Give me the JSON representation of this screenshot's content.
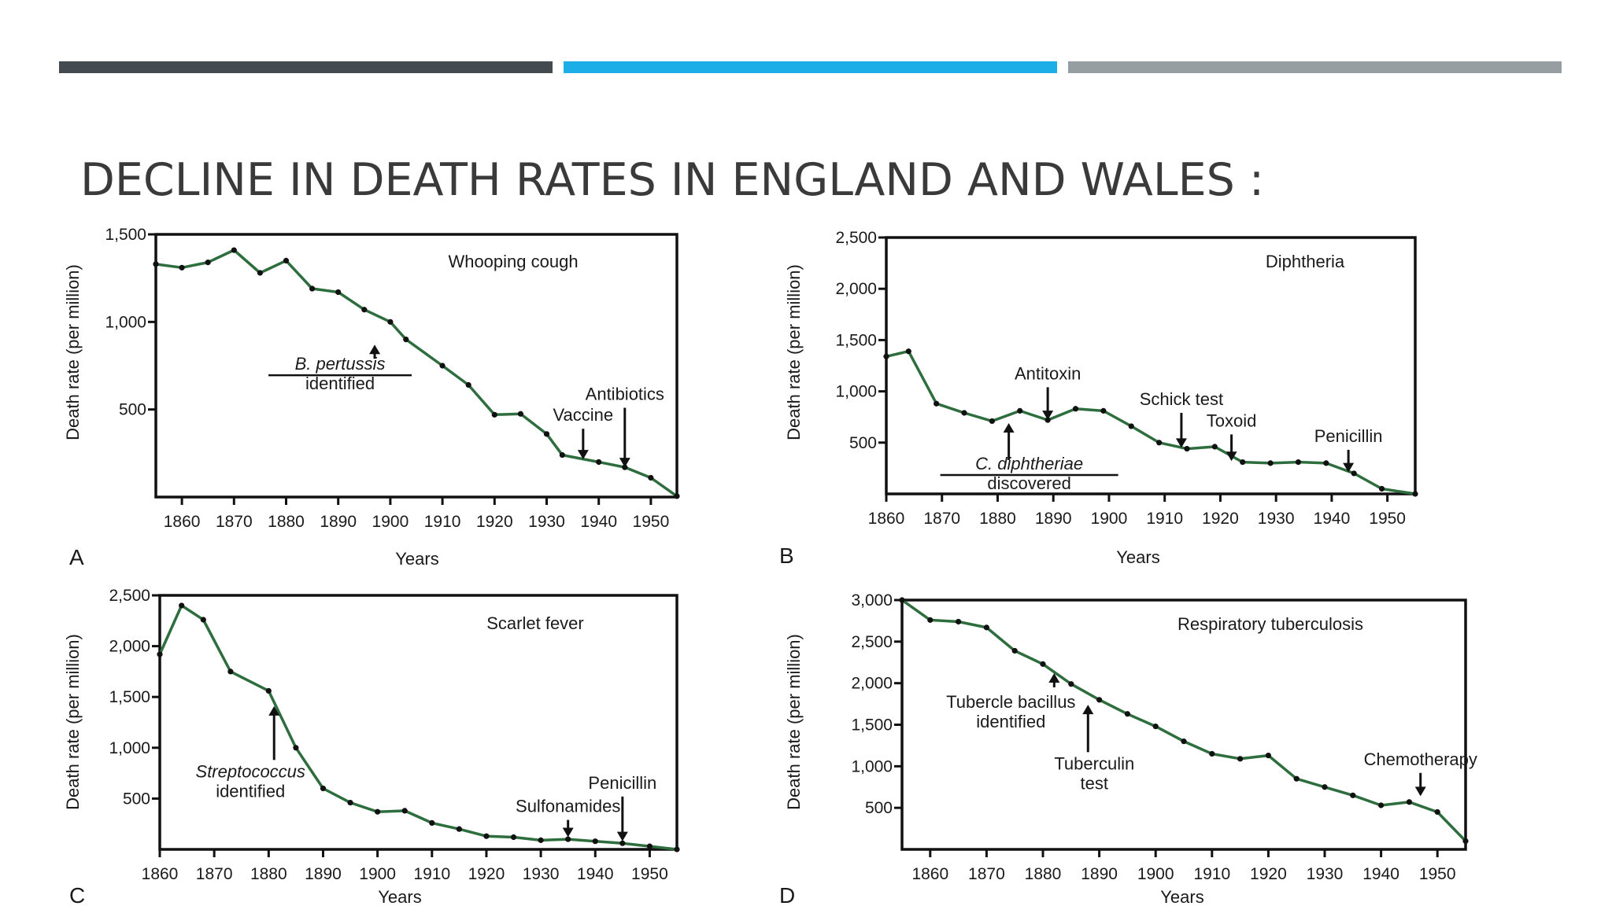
{
  "slide": {
    "title": "DECLINE IN DEATH RATES IN ENGLAND AND WALES :",
    "bar_colors": [
      "#434b50",
      "#1caee6",
      "#979ea2"
    ]
  },
  "style": {
    "line_color": "#2e6e3e",
    "dot_color": "#111111",
    "axis_color": "#111111"
  },
  "chart_data": [
    {
      "type": "line",
      "panel": "A",
      "title": "Whooping cough",
      "xlabel": "Years",
      "ylabel": "Death rate (per million)",
      "xlim": [
        1855,
        1955
      ],
      "ylim": [
        0,
        1500
      ],
      "xticks": [
        1860,
        1870,
        1880,
        1890,
        1900,
        1910,
        1920,
        1930,
        1940,
        1950
      ],
      "yticks": [
        500,
        1000,
        1500
      ],
      "ytick_labels": [
        "500",
        "1,000",
        "1,500"
      ],
      "x": [
        1855,
        1860,
        1865,
        1870,
        1875,
        1880,
        1885,
        1890,
        1895,
        1900,
        1903,
        1910,
        1915,
        1920,
        1925,
        1930,
        1933,
        1940,
        1945,
        1950,
        1955
      ],
      "y": [
        1330,
        1310,
        1340,
        1410,
        1280,
        1350,
        1190,
        1170,
        1070,
        1000,
        900,
        750,
        640,
        470,
        475,
        360,
        240,
        200,
        170,
        110,
        5
      ],
      "annotations": [
        {
          "text": [
            "B. pertussis",
            "identified"
          ],
          "italic_first": true,
          "underline": true,
          "x": 1897,
          "arrow_from": 790,
          "arrow_to": 870
        },
        {
          "text": [
            "Vaccine"
          ],
          "x": 1937,
          "arrow_from": 390,
          "arrow_to": 215
        },
        {
          "text": [
            "Antibiotics"
          ],
          "x": 1945,
          "arrow_from": 510,
          "arrow_to": 170
        }
      ]
    },
    {
      "type": "line",
      "panel": "B",
      "title": "Diphtheria",
      "xlabel": "Years",
      "ylabel": "Death rate (per million)",
      "xlim": [
        1860,
        1955
      ],
      "ylim": [
        0,
        2500
      ],
      "xticks": [
        1860,
        1870,
        1880,
        1890,
        1900,
        1910,
        1920,
        1930,
        1940,
        1950
      ],
      "yticks": [
        500,
        1000,
        1500,
        2000,
        2500
      ],
      "ytick_labels": [
        "500",
        "1,000",
        "1,500",
        "2,000",
        "2,500"
      ],
      "x": [
        1860,
        1864,
        1869,
        1874,
        1879,
        1884,
        1889,
        1894,
        1899,
        1904,
        1909,
        1914,
        1919,
        1924,
        1929,
        1934,
        1939,
        1944,
        1949,
        1955
      ],
      "y": [
        1340,
        1390,
        880,
        790,
        710,
        810,
        720,
        830,
        810,
        660,
        500,
        440,
        460,
        310,
        300,
        310,
        300,
        200,
        50,
        0
      ],
      "annotations": [
        {
          "text": [
            "Antitoxin"
          ],
          "x": 1889,
          "arrow_from": 1040,
          "arrow_to": 720
        },
        {
          "text": [
            "Schick test"
          ],
          "x": 1913,
          "arrow_from": 790,
          "arrow_to": 450
        },
        {
          "text": [
            "Toxoid"
          ],
          "x": 1922,
          "arrow_from": 580,
          "arrow_to": 320
        },
        {
          "text": [
            "Penicillin"
          ],
          "x": 1943,
          "arrow_from": 430,
          "arrow_to": 210
        },
        {
          "text": [
            "C. diphtheriae",
            "discovered"
          ],
          "italic_first": true,
          "underline": true,
          "x": 1882,
          "arrow_from": 330,
          "arrow_to": 690
        }
      ]
    },
    {
      "type": "line",
      "panel": "C",
      "title": "Scarlet fever",
      "xlabel": "Years",
      "ylabel": "Death rate (per million)",
      "xlim": [
        1860,
        1955
      ],
      "ylim": [
        0,
        2500
      ],
      "xticks": [
        1860,
        1870,
        1880,
        1890,
        1900,
        1910,
        1920,
        1930,
        1940,
        1950
      ],
      "yticks": [
        500,
        1000,
        1500,
        2000,
        2500
      ],
      "ytick_labels": [
        "500",
        "1,000",
        "1,500",
        "2,000",
        "2,500"
      ],
      "x": [
        1860,
        1864,
        1868,
        1873,
        1880,
        1885,
        1890,
        1895,
        1900,
        1905,
        1910,
        1915,
        1920,
        1925,
        1930,
        1935,
        1940,
        1945,
        1950,
        1955
      ],
      "y": [
        1920,
        2400,
        2260,
        1750,
        1560,
        1000,
        600,
        460,
        370,
        380,
        260,
        200,
        130,
        120,
        90,
        100,
        80,
        60,
        30,
        0
      ],
      "annotations": [
        {
          "text": [
            "Streptococcus",
            "identified"
          ],
          "italic_first": true,
          "x": 1881,
          "arrow_from": 880,
          "arrow_to": 1410
        },
        {
          "text": [
            "Sulfonamides"
          ],
          "x": 1935,
          "arrow_from": 290,
          "arrow_to": 120
        },
        {
          "text": [
            "Penicillin"
          ],
          "x": 1945,
          "arrow_from": 520,
          "arrow_to": 80
        }
      ]
    },
    {
      "type": "line",
      "panel": "D",
      "title": "Respiratory tuberculosis",
      "xlabel": "Years",
      "ylabel": "Death rate (per million)",
      "xlim": [
        1855,
        1955
      ],
      "ylim": [
        0,
        3000
      ],
      "xticks": [
        1860,
        1870,
        1880,
        1890,
        1900,
        1910,
        1920,
        1930,
        1940,
        1950
      ],
      "yticks": [
        500,
        1000,
        1500,
        2000,
        2500,
        3000
      ],
      "ytick_labels": [
        "500",
        "1,000",
        "1,500",
        "2,000",
        "2,500",
        "3,000"
      ],
      "x": [
        1855,
        1860,
        1865,
        1870,
        1875,
        1880,
        1885,
        1890,
        1895,
        1900,
        1905,
        1910,
        1915,
        1920,
        1925,
        1930,
        1935,
        1940,
        1945,
        1950,
        1955
      ],
      "y": [
        3000,
        2760,
        2740,
        2670,
        2390,
        2230,
        1990,
        1800,
        1630,
        1480,
        1300,
        1150,
        1090,
        1130,
        850,
        750,
        650,
        530,
        570,
        450,
        100
      ],
      "annotations": [
        {
          "text": [
            "Tubercle bacillus",
            "identified"
          ],
          "x": 1882,
          "arrow_from": 1950,
          "arrow_to": 2120
        },
        {
          "text": [
            "Tuberculin",
            "test"
          ],
          "x": 1888,
          "arrow_from": 1170,
          "arrow_to": 1740
        },
        {
          "text": [
            "Chemotherapy"
          ],
          "x": 1947,
          "arrow_from": 920,
          "arrow_to": 640
        }
      ]
    }
  ]
}
